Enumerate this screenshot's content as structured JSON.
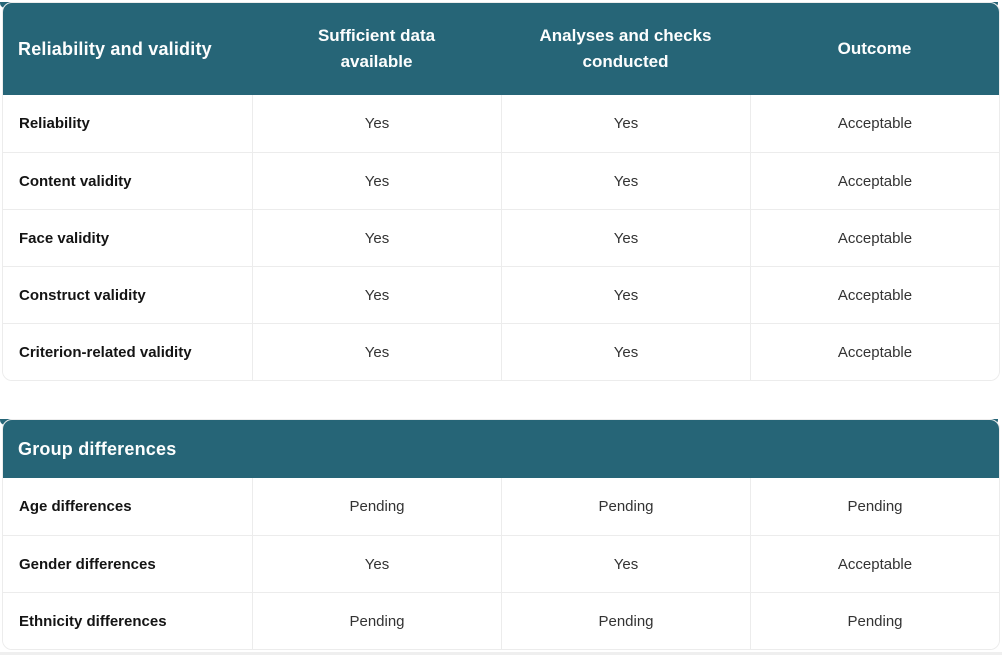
{
  "theme": {
    "header_bg": "#266577",
    "header_text": "#fdfefe",
    "divider_border": "#ececec",
    "row_label_color": "#141414",
    "cell_value_color": "#333333",
    "page_bg": "#ffffff",
    "bottom_strip": "#efefef"
  },
  "tables": [
    {
      "title": "Reliability and validity",
      "columns": [
        "Sufficient data available",
        "Analyses and checks conducted",
        "Outcome"
      ],
      "rows": [
        {
          "label": "Reliability",
          "values": [
            "Yes",
            "Yes",
            "Acceptable"
          ]
        },
        {
          "label": "Content validity",
          "values": [
            "Yes",
            "Yes",
            "Acceptable"
          ]
        },
        {
          "label": "Face validity",
          "values": [
            "Yes",
            "Yes",
            "Acceptable"
          ]
        },
        {
          "label": "Construct validity",
          "values": [
            "Yes",
            "Yes",
            "Acceptable"
          ]
        },
        {
          "label": "Criterion-related validity",
          "values": [
            "Yes",
            "Yes",
            "Acceptable"
          ]
        }
      ]
    },
    {
      "title": "Group differences",
      "columns": [],
      "rows": [
        {
          "label": "Age differences",
          "values": [
            "Pending",
            "Pending",
            "Pending"
          ]
        },
        {
          "label": "Gender differences",
          "values": [
            "Yes",
            "Yes",
            "Acceptable"
          ]
        },
        {
          "label": "Ethnicity differences",
          "values": [
            "Pending",
            "Pending",
            "Pending"
          ]
        }
      ]
    }
  ]
}
